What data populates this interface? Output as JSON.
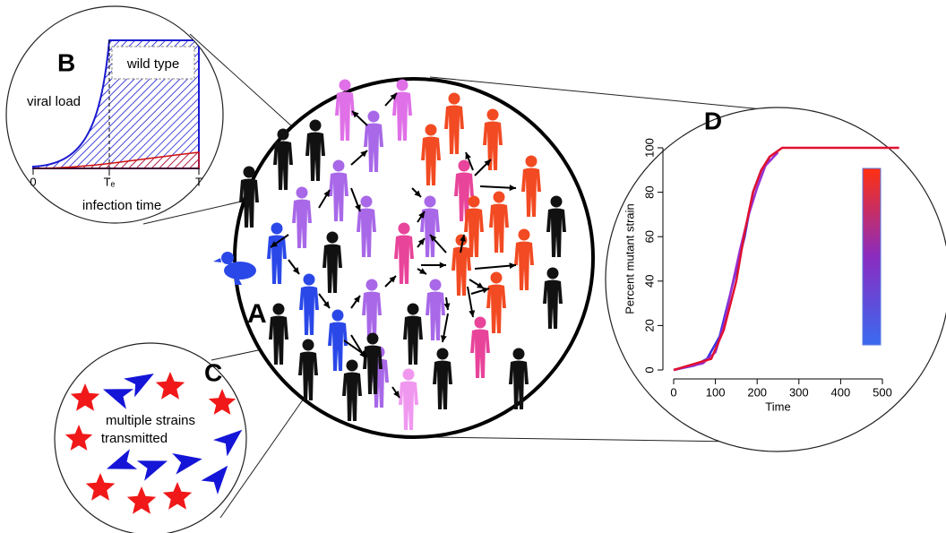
{
  "panels": {
    "a": {
      "label": "A"
    },
    "b": {
      "label": "B",
      "y_label": "viral load",
      "legend": "wild type",
      "x_label": "infection time",
      "ticks": [
        "0",
        "Tₑ",
        "T"
      ]
    },
    "c": {
      "label": "C",
      "text": [
        "multiple strains",
        "transmitted"
      ]
    },
    "d": {
      "label": "D",
      "x_label": "Time",
      "y_label": "Percent mutant strain",
      "xlim": [
        0,
        500
      ],
      "ylim": [
        0,
        100
      ],
      "xticks": [
        0,
        100,
        200,
        300,
        400,
        500
      ],
      "yticks": [
        0,
        20,
        40,
        60,
        80,
        100
      ],
      "series": [
        {
          "color": "#3a2ee0",
          "x": [
            0,
            50,
            80,
            110,
            130,
            150,
            170,
            190,
            210,
            230
          ],
          "y": [
            0,
            2,
            5,
            15,
            30,
            45,
            60,
            80,
            90,
            95
          ]
        },
        {
          "color": "#9a30d0",
          "x": [
            0,
            70,
            100,
            120,
            140,
            160,
            180,
            200,
            220,
            250
          ],
          "y": [
            0,
            3,
            8,
            20,
            38,
            55,
            70,
            82,
            92,
            98
          ]
        },
        {
          "color": "#e01030",
          "x": [
            0,
            90,
            120,
            150,
            170,
            190,
            210,
            230,
            260,
            540
          ],
          "y": [
            0,
            5,
            18,
            40,
            62,
            80,
            90,
            96,
            100,
            100
          ]
        }
      ]
    }
  }
}
